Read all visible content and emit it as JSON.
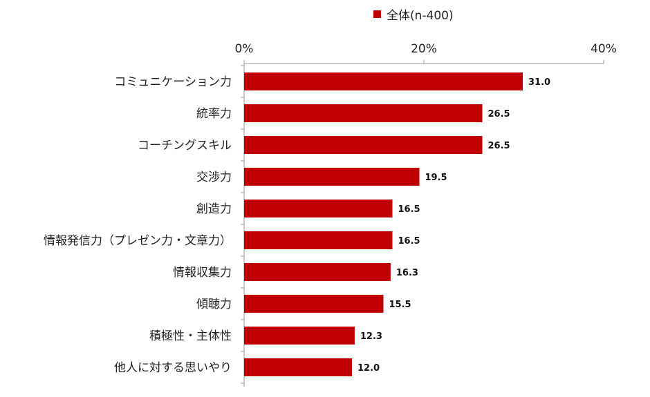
{
  "chart_data": {
    "type": "bar",
    "orientation": "horizontal",
    "legend": {
      "label": "全体(n-400)",
      "position": "top"
    },
    "series": [
      {
        "name": "全体(n-400)",
        "color": "#c00000",
        "values": [
          31.0,
          26.5,
          26.5,
          19.5,
          16.5,
          16.5,
          16.3,
          15.5,
          12.3,
          12.0
        ]
      }
    ],
    "categories": [
      "コミュニケーション力",
      "統率力",
      "コーチングスキル",
      "交渉力",
      "創造力",
      "情報発信力（プレゼン力・文章力）",
      "情報収集力",
      "傾聴力",
      "積極性・主体性",
      "他人に対する思いやり"
    ],
    "value_labels": [
      "31.0",
      "26.5",
      "26.5",
      "19.5",
      "16.5",
      "16.5",
      "16.3",
      "15.5",
      "12.3",
      "12.0"
    ],
    "x_axis": {
      "min": 0,
      "max": 40,
      "ticks": [
        0,
        20,
        40
      ],
      "tick_labels": [
        "0%",
        "20%",
        "40%"
      ],
      "position": "top"
    },
    "grid": false
  }
}
